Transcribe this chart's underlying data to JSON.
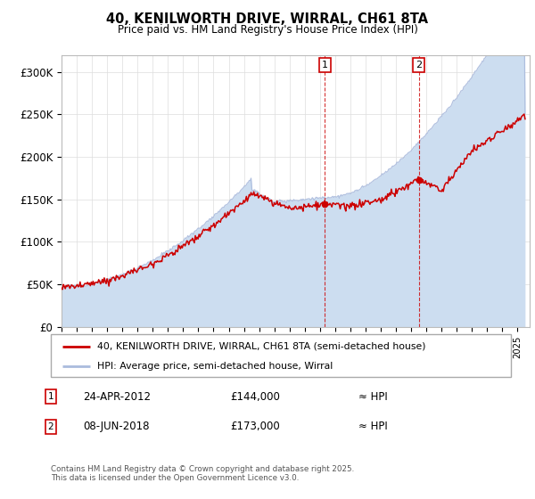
{
  "title_line1": "40, KENILWORTH DRIVE, WIRRAL, CH61 8TA",
  "title_line2": "Price paid vs. HM Land Registry's House Price Index (HPI)",
  "ylim": [
    0,
    320000
  ],
  "yticks": [
    0,
    50000,
    100000,
    150000,
    200000,
    250000,
    300000
  ],
  "ytick_labels": [
    "£0",
    "£50K",
    "£100K",
    "£150K",
    "£200K",
    "£250K",
    "£300K"
  ],
  "line_color": "#cc0000",
  "hpi_color": "#aabbdd",
  "hpi_fill_color": "#ccddf0",
  "transaction1_date": "24-APR-2012",
  "transaction1_price": 144000,
  "transaction2_date": "08-JUN-2018",
  "transaction2_price": 173000,
  "legend_line1": "40, KENILWORTH DRIVE, WIRRAL, CH61 8TA (semi-detached house)",
  "legend_line2": "HPI: Average price, semi-detached house, Wirral",
  "footnote": "Contains HM Land Registry data © Crown copyright and database right 2025.\nThis data is licensed under the Open Government Licence v3.0."
}
